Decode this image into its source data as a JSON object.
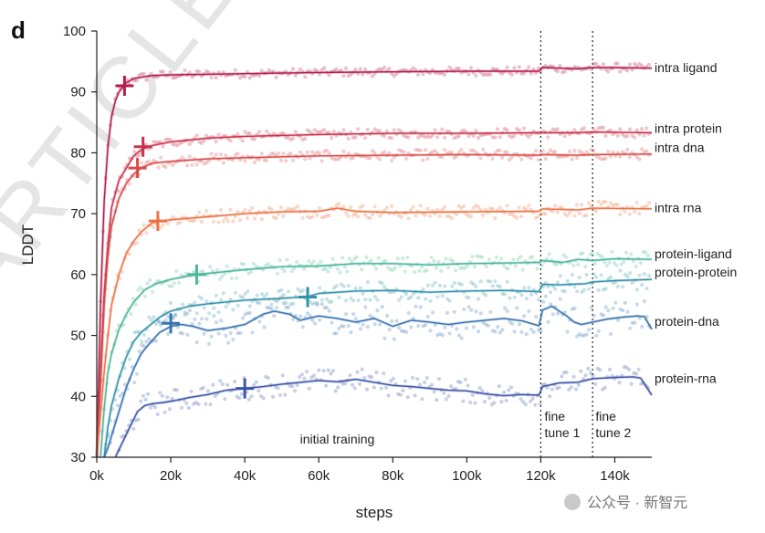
{
  "panel_letter": "d",
  "watermark": "ARTICLE I",
  "corner_watermark": "公众号 · 新智元",
  "colors": {
    "intra ligand": "#b21f4e",
    "intra protein": "#c8334b",
    "intra dna": "#d84b4b",
    "intra rna": "#ea7446",
    "protein-ligand": "#4db69a",
    "protein-protein": "#3292a8",
    "protein-dna": "#3773b0",
    "protein-rna": "#3c55a6"
  },
  "chart_data": {
    "type": "line",
    "xlabel": "steps",
    "ylabel": "LDDT",
    "xlim": [
      0,
      150000
    ],
    "ylim": [
      30,
      100
    ],
    "xticks": [
      0,
      20000,
      40000,
      60000,
      80000,
      100000,
      120000,
      140000
    ],
    "xtick_labels": [
      "0k",
      "20k",
      "40k",
      "60k",
      "80k",
      "100k",
      "120k",
      "140k"
    ],
    "yticks": [
      30,
      40,
      50,
      60,
      70,
      80,
      90,
      100
    ],
    "ytick_labels": [
      "30",
      "40",
      "50",
      "60",
      "70",
      "80",
      "90",
      "100"
    ],
    "grid": false,
    "legend": "labels at right end of each line",
    "phase_boundaries": [
      120000,
      134000
    ],
    "annotations": [
      {
        "text": "initial training",
        "x": 65000,
        "y": 33
      },
      {
        "lines": [
          "fine",
          "tune 1"
        ],
        "x": 121000,
        "y": 36
      },
      {
        "lines": [
          "fine",
          "tune 2"
        ],
        "x": 134800,
        "y": 36
      }
    ],
    "series": [
      {
        "name": "intra ligand",
        "x": [
          0,
          1000,
          2000,
          3000,
          4000,
          5000,
          6000,
          8000,
          10000,
          15000,
          20000,
          30000,
          40000,
          60000,
          80000,
          100000,
          119500,
          120500,
          130000,
          134000,
          140000,
          150000
        ],
        "y": [
          30,
          55,
          72,
          81,
          86,
          88.5,
          90,
          91.5,
          92.2,
          92.7,
          92.8,
          92.9,
          93.0,
          93.2,
          93.3,
          93.4,
          93.4,
          94.0,
          93.8,
          94.0,
          94.0,
          93.9
        ],
        "marker": [
          7500,
          91
        ]
      },
      {
        "name": "intra protein",
        "x": [
          0,
          1000,
          2000,
          3000,
          4000,
          6000,
          8000,
          10000,
          12000,
          15000,
          20000,
          30000,
          40000,
          60000,
          80000,
          100000,
          119500,
          120500,
          130000,
          134000,
          150000
        ],
        "y": [
          30,
          44,
          57,
          65,
          71,
          75.5,
          77.5,
          79.5,
          80.5,
          81.2,
          81.8,
          82.4,
          82.7,
          83.0,
          83.2,
          83.2,
          83.3,
          83.3,
          83.3,
          83.4,
          83.3
        ],
        "marker": [
          12500,
          81
        ]
      },
      {
        "name": "intra dna",
        "x": [
          0,
          1000,
          2000,
          3000,
          4000,
          6000,
          8000,
          10000,
          12000,
          15000,
          20000,
          30000,
          40000,
          60000,
          80000,
          100000,
          119500,
          120500,
          130000,
          134000,
          150000
        ],
        "y": [
          30,
          42,
          55,
          63,
          68,
          72.5,
          75,
          76.5,
          77.5,
          78.3,
          78.6,
          79.0,
          79.2,
          79.5,
          79.6,
          79.7,
          79.6,
          79.7,
          79.6,
          79.7,
          79.8
        ],
        "marker": [
          11000,
          77.5
        ]
      },
      {
        "name": "intra rna",
        "x": [
          0,
          1000,
          2000,
          3000,
          4000,
          6000,
          8000,
          10000,
          12000,
          15000,
          20000,
          30000,
          40000,
          50000,
          60000,
          65000,
          70000,
          80000,
          100000,
          119500,
          120500,
          130000,
          134000,
          150000
        ],
        "y": [
          30,
          37,
          44,
          50,
          55,
          60,
          63.5,
          65.5,
          67,
          68.5,
          69,
          69.5,
          70,
          70.3,
          70.4,
          70.9,
          70.4,
          70.2,
          70.3,
          70.4,
          70.8,
          70.6,
          70.9,
          70.8
        ],
        "marker": [
          16500,
          68.8
        ]
      },
      {
        "name": "protein-ligand",
        "x": [
          1000,
          2000,
          3000,
          4000,
          6000,
          8000,
          10000,
          13000,
          16000,
          20000,
          25000,
          30000,
          40000,
          50000,
          60000,
          70000,
          80000,
          90000,
          100000,
          110000,
          119500,
          120500,
          126000,
          130000,
          134000,
          140000,
          150000
        ],
        "y": [
          30,
          38,
          44,
          47,
          51,
          53.5,
          55.5,
          57.5,
          58.5,
          59.2,
          59.8,
          60.2,
          60.8,
          61.3,
          61.4,
          61.8,
          61.8,
          61.6,
          61.8,
          61.9,
          62.0,
          62.3,
          62.0,
          62.5,
          62.3,
          62.6,
          62.5
        ],
        "marker": [
          27000,
          60
        ]
      },
      {
        "name": "protein-protein",
        "x": [
          2000,
          3000,
          4000,
          6000,
          8000,
          10000,
          12000,
          14000,
          17000,
          20000,
          25000,
          30000,
          40000,
          50000,
          57000,
          60000,
          70000,
          80000,
          90000,
          100000,
          110000,
          119500,
          120500,
          125000,
          128000,
          132000,
          134000,
          140000,
          150000
        ],
        "y": [
          30,
          35,
          38.5,
          43,
          46.5,
          49,
          50.5,
          51.5,
          53,
          54,
          54.8,
          55.2,
          55.8,
          56.1,
          56.4,
          56.9,
          57.3,
          57.4,
          57.1,
          57.3,
          57.4,
          57.2,
          58.4,
          58.3,
          58.4,
          58.5,
          58.8,
          59.0,
          59.2
        ],
        "marker": [
          57000,
          56.3
        ]
      },
      {
        "name": "protein-dna",
        "x": [
          2000,
          3000,
          4000,
          6000,
          8000,
          10000,
          12000,
          14000,
          17000,
          20000,
          23000,
          26000,
          30000,
          35000,
          40000,
          45000,
          48000,
          52000,
          55000,
          60000,
          65000,
          70000,
          75000,
          80000,
          85000,
          90000,
          95000,
          100000,
          105000,
          110000,
          115000,
          119500,
          120500,
          123000,
          125000,
          127000,
          129000,
          131000,
          134000,
          138000,
          142000,
          146000,
          148000,
          150000
        ],
        "y": [
          30,
          31.5,
          33.5,
          37.5,
          41.5,
          44.5,
          47,
          48.5,
          50.5,
          51.5,
          51.8,
          51.5,
          50.8,
          51.2,
          51.8,
          53.5,
          54.0,
          53.5,
          52.5,
          53.2,
          52.8,
          52.2,
          52.8,
          51.5,
          52.5,
          52.2,
          51.8,
          52.2,
          52.5,
          52.8,
          52.4,
          51.6,
          54.2,
          54.8,
          54.0,
          53.2,
          52.2,
          51.8,
          52.2,
          52.7,
          53.0,
          53.2,
          53.1,
          51.0
        ],
        "marker": [
          20000,
          52
        ]
      },
      {
        "name": "protein-rna",
        "x": [
          5000,
          7000,
          9000,
          11000,
          13000,
          15000,
          18000,
          21000,
          25000,
          30000,
          35000,
          40000,
          45000,
          50000,
          55000,
          60000,
          65000,
          70000,
          75000,
          80000,
          85000,
          90000,
          95000,
          100000,
          105000,
          110000,
          115000,
          119500,
          120500,
          125000,
          130000,
          134000,
          140000,
          145000,
          147000,
          150000
        ],
        "y": [
          30,
          32.5,
          35,
          37.5,
          38.5,
          38.8,
          39.0,
          39.3,
          39.8,
          40.3,
          41.0,
          41.3,
          41.6,
          42.0,
          42.3,
          42.6,
          42.4,
          42.8,
          42.3,
          41.8,
          41.6,
          41.3,
          41.0,
          40.9,
          40.4,
          40.1,
          40.3,
          40.2,
          41.6,
          42.2,
          42.3,
          42.9,
          43.1,
          43.2,
          43.0,
          40.2
        ],
        "marker": [
          40000,
          41.3
        ]
      }
    ]
  }
}
